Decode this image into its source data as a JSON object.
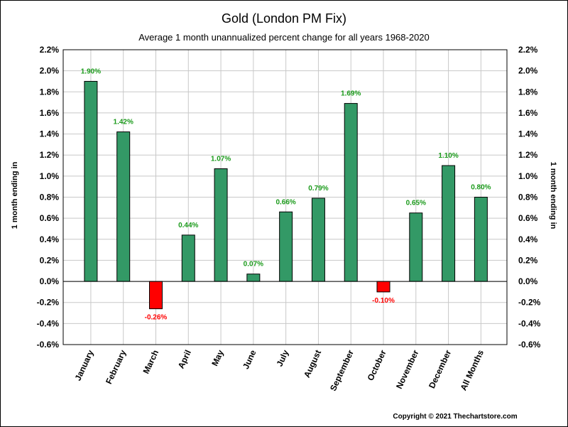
{
  "chart_data": {
    "type": "bar",
    "title": "Gold (London PM Fix)",
    "subtitle": "Average 1 month unannualized percent change for all years 1968-2020",
    "ylabel": "1 month ending in",
    "ylabel_right": "1 month ending in",
    "xlabel": "",
    "ylim": [
      -0.6,
      2.2
    ],
    "ytick_step": 0.2,
    "ytick_labels": [
      "2.2%",
      "2.0%",
      "1.8%",
      "1.6%",
      "1.4%",
      "1.2%",
      "1.0%",
      "0.8%",
      "0.6%",
      "0.4%",
      "0.2%",
      "0.0%",
      "-0.2%",
      "-0.4%",
      "-0.6%"
    ],
    "categories": [
      "January",
      "February",
      "March",
      "April",
      "May",
      "June",
      "July",
      "August",
      "September",
      "October",
      "November",
      "December",
      "All Months"
    ],
    "values": [
      1.9,
      1.42,
      -0.26,
      0.44,
      1.07,
      0.07,
      0.66,
      0.79,
      1.69,
      -0.1,
      0.65,
      1.1,
      0.8
    ],
    "value_labels": [
      "1.90%",
      "1.42%",
      "-0.26%",
      "0.44%",
      "1.07%",
      "0.07%",
      "0.66%",
      "0.79%",
      "1.69%",
      "-0.10%",
      "0.65%",
      "1.10%",
      "0.80%"
    ],
    "grid": true,
    "colors": {
      "positive_bar": "#339966",
      "negative_bar": "#ff0000",
      "positive_label": "#1a9a1a",
      "negative_label": "#ff0000",
      "grid": "#c8c8c8"
    }
  },
  "footer": {
    "copyright": "Copyright © 2021 Thechartstore.com"
  }
}
